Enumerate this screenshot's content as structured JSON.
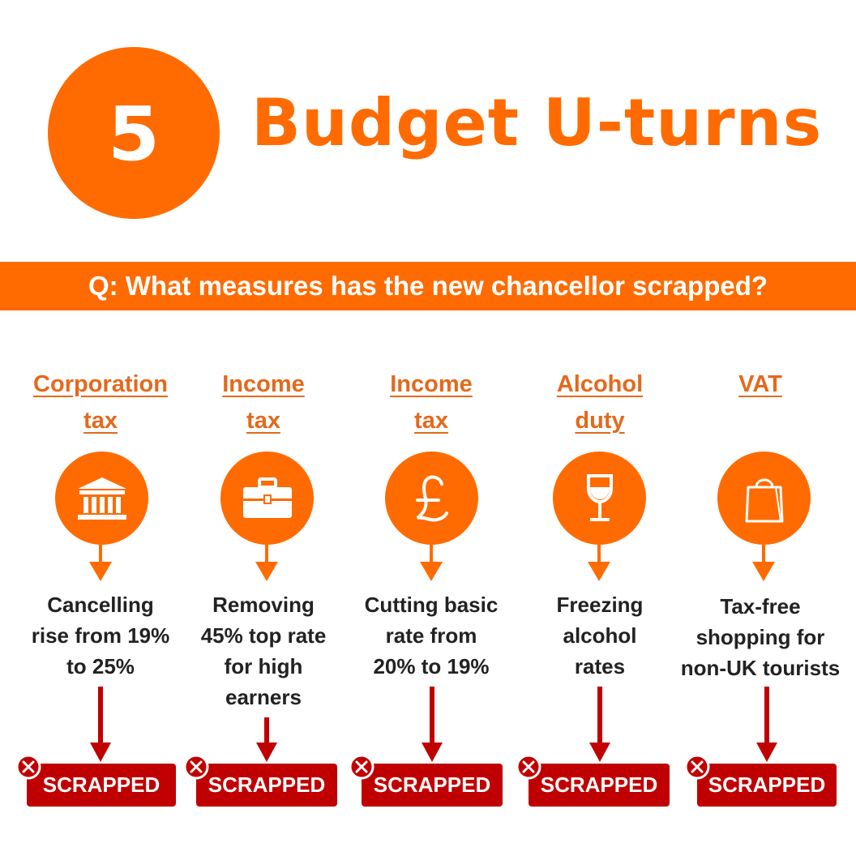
{
  "header": {
    "number": "5",
    "title": "Budget U-turns"
  },
  "question": "Q: What measures has the new chancellor scrapped?",
  "columns": [
    {
      "category": "Corporation\ntax",
      "icon": "bank-icon",
      "description": "Cancelling\nrise from 19%\nto 25%",
      "status": "SCRAPPED"
    },
    {
      "category": "Income\ntax",
      "icon": "briefcase-icon",
      "description": "Removing\n45% top rate\nfor high\nearners",
      "status": "SCRAPPED"
    },
    {
      "category": "Income\ntax",
      "icon": "pound-icon",
      "description": "Cutting basic\nrate from\n20% to 19%",
      "status": "SCRAPPED"
    },
    {
      "category": "Alcohol\nduty",
      "icon": "wine-glass-icon",
      "description": "Freezing\nalcohol\nrates",
      "status": "SCRAPPED"
    },
    {
      "category": "VAT",
      "icon": "shopping-bag-icon",
      "description": "Tax-free\nshopping for\nnon-UK tourists",
      "status": "SCRAPPED"
    }
  ],
  "colors": {
    "accent": "#ff6b00",
    "heading": "#e4691c",
    "scrapped": "#c00000",
    "text": "#222222"
  }
}
